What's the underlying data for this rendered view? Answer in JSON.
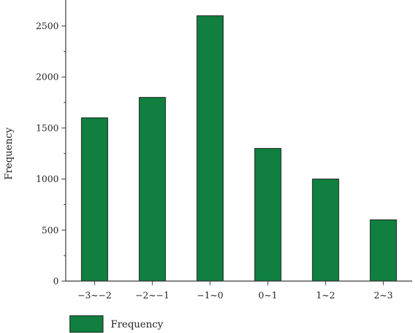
{
  "chart_data": {
    "type": "bar",
    "categories": [
      "−3~−2",
      "−2~−1",
      "−1~0",
      "0~1",
      "1~2",
      "2~3"
    ],
    "series": [
      {
        "name": "Frequency",
        "values": [
          1600,
          1800,
          2600,
          1300,
          1000,
          600
        ]
      }
    ],
    "title": "",
    "xlabel": "",
    "ylabel": "Frequency",
    "ylim": [
      0,
      2700
    ],
    "yticks": [
      0,
      500,
      1000,
      1500,
      2000,
      2500
    ],
    "grid": false,
    "legend": "bottom-left",
    "colors": {
      "bar": "#107f3f",
      "bar_stroke": "#1a1a1a",
      "axis": "#333333"
    }
  }
}
